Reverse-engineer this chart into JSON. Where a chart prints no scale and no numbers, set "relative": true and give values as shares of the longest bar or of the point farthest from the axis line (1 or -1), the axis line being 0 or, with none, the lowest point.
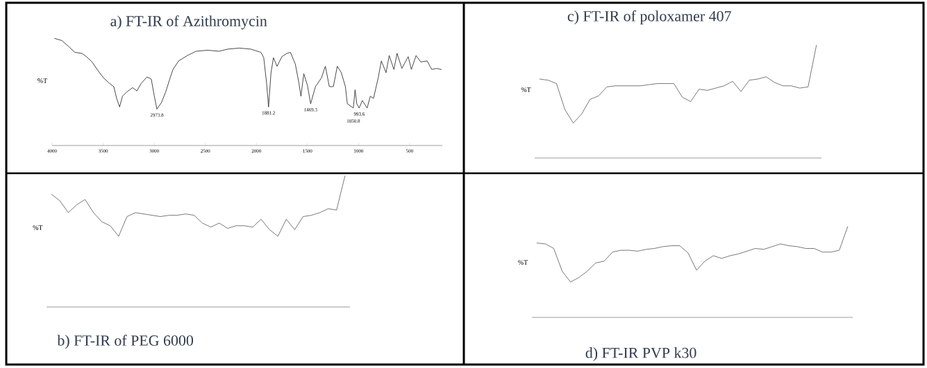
{
  "chart_data": [
    {
      "type": "line",
      "title": "a) FT-IR of Azithromycin",
      "ylabel": "%T",
      "relative": true,
      "color": "#1a1a1a",
      "marker": "none",
      "line_style": "solid",
      "xlim": [
        4000,
        180
      ],
      "xticks": [
        4000,
        3500,
        3000,
        2500,
        2000,
        1500,
        1000,
        500
      ],
      "x": [
        3975,
        3904,
        3833,
        3777,
        3706,
        3664,
        3608,
        3551,
        3495,
        3438,
        3396,
        3368,
        3339,
        3311,
        3269,
        3212,
        3170,
        3128,
        3071,
        3029,
        3001,
        2974,
        2930,
        2888,
        2845,
        2817,
        2761,
        2676,
        2591,
        2478,
        2365,
        2281,
        2168,
        2055,
        1956,
        1928,
        1900,
        1881,
        1857,
        1833,
        1798,
        1750,
        1702,
        1667,
        1619,
        1583,
        1564,
        1536,
        1500,
        1469,
        1422,
        1364,
        1325,
        1286,
        1247,
        1208,
        1169,
        1129,
        1110,
        1051,
        1034,
        1017,
        994,
        963,
        916,
        885,
        854,
        808,
        777,
        731,
        700,
        654,
        623,
        576,
        514,
        483,
        437,
        391,
        329,
        283,
        236,
        190
      ],
      "values": [
        1.0,
        0.98,
        0.92,
        0.87,
        0.86,
        0.83,
        0.78,
        0.7,
        0.63,
        0.58,
        0.55,
        0.44,
        0.36,
        0.46,
        0.5,
        0.54,
        0.51,
        0.58,
        0.64,
        0.62,
        0.47,
        0.34,
        0.4,
        0.5,
        0.63,
        0.71,
        0.79,
        0.84,
        0.88,
        0.89,
        0.88,
        0.9,
        0.91,
        0.9,
        0.87,
        0.82,
        0.58,
        0.36,
        0.68,
        0.82,
        0.74,
        0.83,
        0.86,
        0.87,
        0.76,
        0.58,
        0.46,
        0.67,
        0.56,
        0.39,
        0.55,
        0.63,
        0.74,
        0.55,
        0.55,
        0.74,
        0.68,
        0.55,
        0.39,
        0.35,
        0.52,
        0.39,
        0.35,
        0.42,
        0.35,
        0.46,
        0.44,
        0.63,
        0.79,
        0.68,
        0.84,
        0.71,
        0.86,
        0.72,
        0.83,
        0.71,
        0.84,
        0.78,
        0.79,
        0.71,
        0.72,
        0.71
      ],
      "annotations": [
        {
          "text": "2973.8",
          "x": 2973.8,
          "y": 0.34
        },
        {
          "text": "1881.2",
          "x": 1881.2,
          "y": 0.36
        },
        {
          "text": "1469.3",
          "x": 1469.3,
          "y": 0.39
        },
        {
          "text": "1050.8",
          "x": 1050.8,
          "y": 0.35
        },
        {
          "text": "993.6",
          "x": 993.6,
          "y": 0.35
        }
      ]
    },
    {
      "type": "line",
      "title": "b) FT-IR  of  PEG 6000",
      "ylabel": "%T",
      "relative": true,
      "color": "#555555",
      "marker": "none",
      "line_style": "solid",
      "categories": [
        null,
        null,
        null,
        null,
        null,
        null,
        null,
        null,
        null,
        null,
        null,
        null,
        null,
        null,
        null,
        null,
        null,
        null,
        null,
        null,
        null,
        null,
        null,
        null,
        null,
        null,
        null,
        null,
        null,
        null,
        null,
        null,
        null,
        null,
        null,
        null
      ],
      "values": [
        0.86,
        0.81,
        0.72,
        0.78,
        0.82,
        0.72,
        0.65,
        0.62,
        0.54,
        0.69,
        0.72,
        0.71,
        0.7,
        0.69,
        0.7,
        0.7,
        0.71,
        0.7,
        0.64,
        0.61,
        0.64,
        0.6,
        0.62,
        0.62,
        0.61,
        0.67,
        0.59,
        0.54,
        0.67,
        0.59,
        0.69,
        0.7,
        0.72,
        0.75,
        0.74,
        1.0
      ]
    },
    {
      "type": "line",
      "title": "c) FT-IR of poloxamer 407",
      "ylabel": "%T",
      "relative": true,
      "color": "#555555",
      "marker": "none",
      "line_style": "solid",
      "categories": [
        null,
        null,
        null,
        null,
        null,
        null,
        null,
        null,
        null,
        null,
        null,
        null,
        null,
        null,
        null,
        null,
        null,
        null,
        null,
        null,
        null,
        null,
        null,
        null,
        null,
        null,
        null,
        null,
        null,
        null,
        null,
        null,
        null,
        null
      ],
      "values": [
        0.7,
        0.69,
        0.66,
        0.43,
        0.31,
        0.39,
        0.52,
        0.55,
        0.63,
        0.64,
        0.64,
        0.64,
        0.64,
        0.65,
        0.66,
        0.66,
        0.66,
        0.54,
        0.5,
        0.61,
        0.6,
        0.62,
        0.64,
        0.68,
        0.59,
        0.69,
        0.7,
        0.72,
        0.67,
        0.64,
        0.64,
        0.62,
        0.63,
        1.0
      ]
    },
    {
      "type": "line",
      "title": "d) FT-IR PVP k30",
      "ylabel": "%T",
      "relative": true,
      "color": "#555555",
      "marker": "none",
      "line_style": "solid",
      "categories": [
        null,
        null,
        null,
        null,
        null,
        null,
        null,
        null,
        null,
        null,
        null,
        null,
        null,
        null,
        null,
        null,
        null,
        null,
        null,
        null,
        null,
        null,
        null,
        null,
        null,
        null,
        null,
        null,
        null,
        null,
        null,
        null,
        null,
        null,
        null,
        null,
        null,
        null
      ],
      "values": [
        0.82,
        0.81,
        0.76,
        0.51,
        0.39,
        0.44,
        0.51,
        0.6,
        0.62,
        0.72,
        0.74,
        0.74,
        0.73,
        0.75,
        0.76,
        0.78,
        0.79,
        0.79,
        0.71,
        0.52,
        0.62,
        0.68,
        0.65,
        0.68,
        0.7,
        0.73,
        0.76,
        0.75,
        0.78,
        0.81,
        0.79,
        0.78,
        0.76,
        0.76,
        0.72,
        0.72,
        0.74,
        1.0
      ]
    }
  ]
}
